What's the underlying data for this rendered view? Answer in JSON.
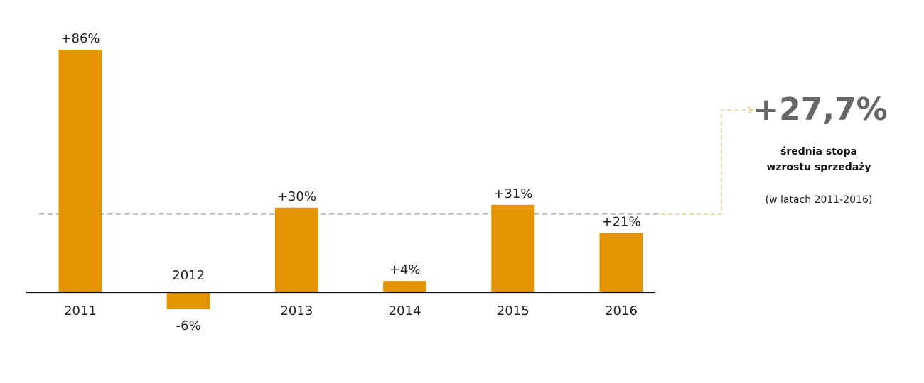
{
  "chart_data": {
    "type": "bar",
    "categories": [
      "2011",
      "2012",
      "2013",
      "2014",
      "2015",
      "2016"
    ],
    "values": [
      86,
      -6,
      30,
      4,
      31,
      21
    ],
    "value_labels": [
      "+86%",
      "-6%",
      "+30%",
      "+4%",
      "+31%",
      "+21%"
    ],
    "color": "#e39400",
    "average": {
      "value": 27.7,
      "label": "+27,7%"
    },
    "average_text": [
      "średnia stopa",
      "wzrostu sprzedaży"
    ],
    "average_note": "(w latach 2011-2016)"
  }
}
